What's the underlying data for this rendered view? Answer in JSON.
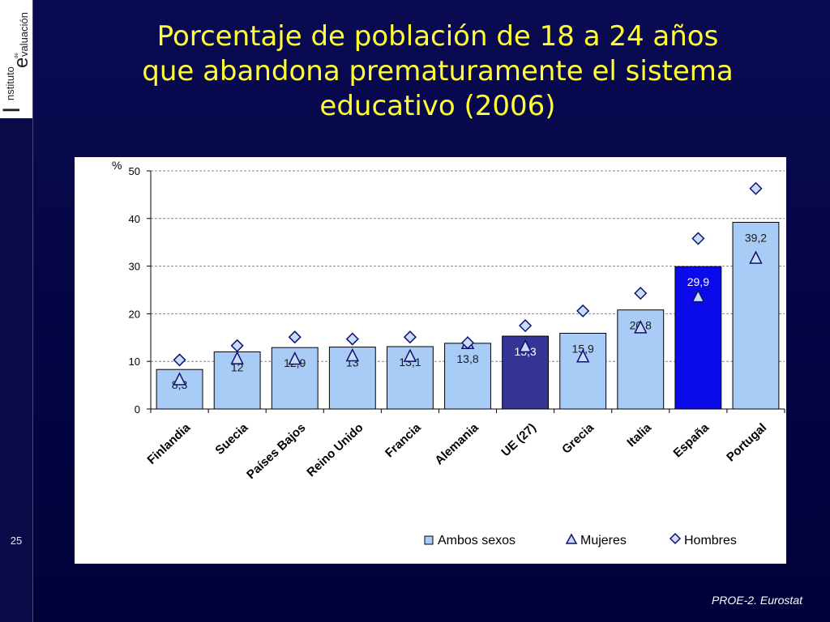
{
  "slide": {
    "title_line1": "Porcentaje de población de 18 a 24 años",
    "title_line2": "que abandona prematuramente el sistema",
    "title_line3": "educativo (2006)",
    "page_number": "25",
    "source": "PROE-2. Eurostat",
    "logo": {
      "line1": "nstituto",
      "line2": "valuación",
      "small": "de",
      "initial_i": "I",
      "initial_e": "e"
    }
  },
  "chart_data": {
    "type": "bar",
    "title": "Porcentaje de población de 18 a 24 años que abandona prematuramente el sistema educativo (2006)",
    "ylabel": "%",
    "ylim": [
      0,
      50
    ],
    "yticks": [
      0,
      10,
      20,
      30,
      40,
      50
    ],
    "grid": true,
    "legend_position": "bottom-right",
    "categories": [
      "Finlandia",
      "Suecia",
      "Países Bajos",
      "Reino Unido",
      "Francia",
      "Alemania",
      "UE (27)",
      "Grecia",
      "Italia",
      "España",
      "Portugal"
    ],
    "series": [
      {
        "name": "Ambos sexos",
        "kind": "bar",
        "values": [
          8.3,
          12,
          12.9,
          13,
          13.1,
          13.8,
          15.3,
          15.9,
          20.8,
          29.9,
          39.2
        ],
        "value_labels": [
          "8,3",
          "12",
          "12,9",
          "13",
          "13,1",
          "13,8",
          "15,3",
          "15,9",
          "20,8",
          "29,9",
          "39,2"
        ]
      },
      {
        "name": "Mujeres",
        "kind": "triangle",
        "values": [
          6.3,
          10.7,
          10.6,
          11.3,
          11.2,
          13.9,
          13.2,
          11.1,
          17.2,
          23.7,
          31.8
        ]
      },
      {
        "name": "Hombres",
        "kind": "diamond",
        "values": [
          10.3,
          13.3,
          15.1,
          14.7,
          15.1,
          13.9,
          17.5,
          20.6,
          24.3,
          35.8,
          46.3
        ]
      }
    ],
    "colors": {
      "bar_default": "#a9ccf7",
      "bar_ue": "#353596",
      "bar_spain": "#0b0bea",
      "label_on_dark": "#ffffff",
      "label_on_light": "#1a1a1a",
      "marker_fill": "#c6dcf7",
      "marker_stroke": "#101070"
    },
    "highlight": {
      "UE (27)": "bar_ue",
      "España": "bar_spain"
    }
  }
}
